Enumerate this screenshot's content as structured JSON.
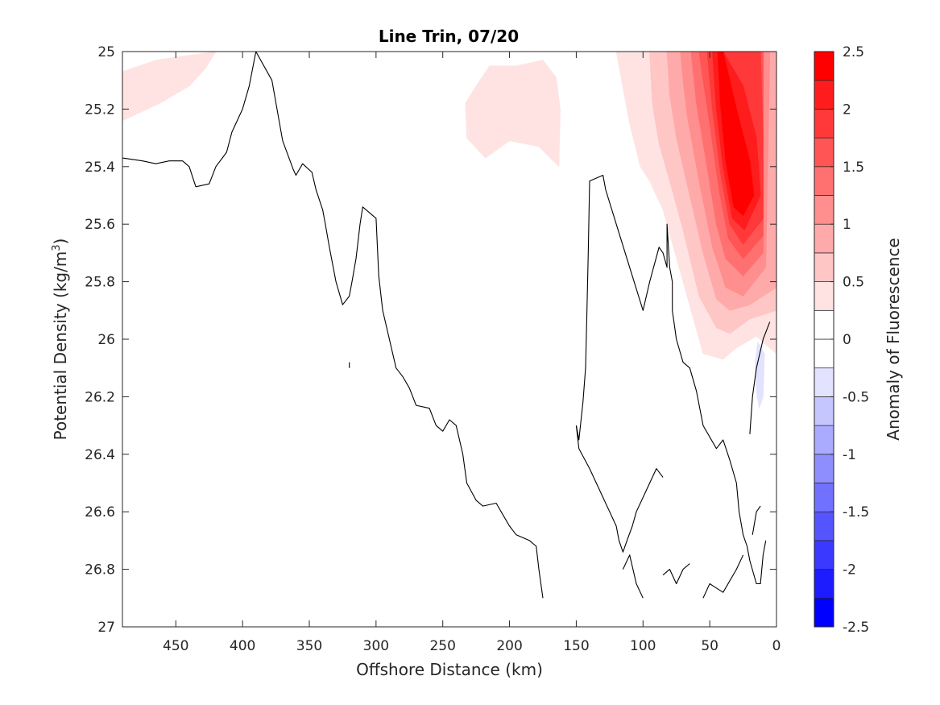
{
  "chart_data": {
    "type": "filled-contour",
    "title": "Line Trin, 07/20",
    "xlabel": "Offshore Distance (km)",
    "ylabel_main": "Potential Density (kg/m",
    "ylabel_sup": "3",
    "ylabel_end": ")",
    "xlim": [
      490,
      0
    ],
    "ylim": [
      25,
      27
    ],
    "x_reversed": true,
    "y_reversed": true,
    "xticks": [
      450,
      400,
      350,
      300,
      250,
      200,
      150,
      100,
      50,
      0
    ],
    "xtick_labels": [
      "450",
      "400",
      "350",
      "300",
      "250",
      "200",
      "150",
      "100",
      "50",
      "0"
    ],
    "yticks": [
      25,
      25.2,
      25.4,
      25.6,
      25.8,
      26,
      26.2,
      26.4,
      26.6,
      26.8,
      27
    ],
    "ytick_labels": [
      "25",
      "25.2",
      "25.4",
      "25.6",
      "25.8",
      "26",
      "26.2",
      "26.4",
      "26.6",
      "26.8",
      "27"
    ],
    "colorbar": {
      "label": "Anomaly of Fluorescence",
      "levels": [
        -2.5,
        -2.25,
        -2,
        -1.75,
        -1.5,
        -1.25,
        -1,
        -0.75,
        -0.5,
        -0.25,
        0,
        0.25,
        0.5,
        0.75,
        1,
        1.25,
        1.5,
        1.75,
        2,
        2.25,
        2.5
      ],
      "tick_values": [
        2.5,
        2,
        1.5,
        1,
        0.5,
        0,
        -0.5,
        -1,
        -1.5,
        -2,
        -2.5
      ],
      "tick_labels": [
        "2.5",
        "2",
        "1.5",
        "1",
        "0.5",
        "0",
        "-0.5",
        "-1",
        "-1.5",
        "-2",
        "-2.5"
      ],
      "colors": [
        "#0000ff",
        "#1c1cff",
        "#3939ff",
        "#5555ff",
        "#7171ff",
        "#8e8eff",
        "#aaaaff",
        "#c6c6ff",
        "#e3e3ff",
        "#ffffff",
        "#ffffff",
        "#ffe3e3",
        "#ffc6c6",
        "#ffaaaa",
        "#ff8e8e",
        "#ff7171",
        "#ff5555",
        "#ff3939",
        "#ff1c1c",
        "#ff0000"
      ]
    },
    "filled_regions": [
      {
        "level": 0.25,
        "color": "#ffe3e3",
        "points": [
          [
            490,
            25.07
          ],
          [
            465,
            25.03
          ],
          [
            420,
            25.0
          ],
          [
            428,
            25.06
          ],
          [
            440,
            25.12
          ],
          [
            462,
            25.18
          ],
          [
            490,
            25.24
          ]
        ]
      },
      {
        "level": 0.25,
        "color": "#ffe3e3",
        "points": [
          [
            225,
            25.12
          ],
          [
            215,
            25.05
          ],
          [
            195,
            25.05
          ],
          [
            175,
            25.03
          ],
          [
            165,
            25.09
          ],
          [
            162,
            25.2
          ],
          [
            163,
            25.4
          ],
          [
            178,
            25.33
          ],
          [
            200,
            25.31
          ],
          [
            218,
            25.37
          ],
          [
            232,
            25.3
          ],
          [
            233,
            25.18
          ]
        ]
      },
      {
        "level": 0.25,
        "color": "#ffe3e3",
        "points": [
          [
            120,
            25.0
          ],
          [
            0,
            25.0
          ],
          [
            0,
            26.05
          ],
          [
            15,
            25.99
          ],
          [
            30,
            26.03
          ],
          [
            40,
            26.07
          ],
          [
            55,
            26.05
          ],
          [
            70,
            25.8
          ],
          [
            85,
            25.55
          ],
          [
            95,
            25.45
          ],
          [
            102,
            25.4
          ],
          [
            110,
            25.25
          ]
        ]
      },
      {
        "level": 0.5,
        "color": "#ffc6c6",
        "points": [
          [
            95,
            25.0
          ],
          [
            0,
            25.0
          ],
          [
            0,
            25.9
          ],
          [
            20,
            25.93
          ],
          [
            35,
            25.98
          ],
          [
            45,
            25.96
          ],
          [
            58,
            25.85
          ],
          [
            70,
            25.62
          ],
          [
            80,
            25.45
          ],
          [
            88,
            25.32
          ],
          [
            93,
            25.18
          ]
        ]
      },
      {
        "level": 0.75,
        "color": "#ffaaaa",
        "points": [
          [
            82,
            25.0
          ],
          [
            0,
            25.0
          ],
          [
            0,
            25.82
          ],
          [
            20,
            25.88
          ],
          [
            35,
            25.9
          ],
          [
            45,
            25.86
          ],
          [
            55,
            25.7
          ],
          [
            65,
            25.5
          ],
          [
            75,
            25.3
          ],
          [
            80,
            25.15
          ]
        ]
      },
      {
        "level": 1.0,
        "color": "#ff8e8e",
        "points": [
          [
            72,
            25.0
          ],
          [
            5,
            25.0
          ],
          [
            8,
            25.75
          ],
          [
            25,
            25.85
          ],
          [
            38,
            25.82
          ],
          [
            48,
            25.68
          ],
          [
            58,
            25.45
          ],
          [
            67,
            25.22
          ],
          [
            70,
            25.1
          ]
        ]
      },
      {
        "level": 1.25,
        "color": "#ff7171",
        "points": [
          [
            64,
            25.0
          ],
          [
            10,
            25.0
          ],
          [
            10,
            25.7
          ],
          [
            25,
            25.78
          ],
          [
            38,
            25.72
          ],
          [
            45,
            25.6
          ],
          [
            52,
            25.4
          ],
          [
            60,
            25.18
          ]
        ]
      },
      {
        "level": 1.5,
        "color": "#ff5555",
        "points": [
          [
            58,
            25.0
          ],
          [
            10,
            25.0
          ],
          [
            10,
            25.64
          ],
          [
            25,
            25.72
          ],
          [
            36,
            25.65
          ],
          [
            43,
            25.48
          ],
          [
            50,
            25.25
          ],
          [
            55,
            25.1
          ]
        ]
      },
      {
        "level": 1.75,
        "color": "#ff3939",
        "points": [
          [
            52,
            25.0
          ],
          [
            12,
            25.0
          ],
          [
            10,
            25.3
          ],
          [
            10,
            25.58
          ],
          [
            25,
            25.67
          ],
          [
            35,
            25.6
          ],
          [
            42,
            25.42
          ],
          [
            48,
            25.2
          ]
        ]
      },
      {
        "level": 2.0,
        "color": "#ff1c1c",
        "points": [
          [
            48,
            25.0
          ],
          [
            40,
            25.0
          ],
          [
            25,
            25.12
          ],
          [
            15,
            25.3
          ],
          [
            12,
            25.5
          ],
          [
            24,
            25.62
          ],
          [
            33,
            25.58
          ],
          [
            40,
            25.4
          ],
          [
            45,
            25.2
          ]
        ]
      },
      {
        "level": 2.25,
        "color": "#ff0000",
        "points": [
          [
            44,
            25.0
          ],
          [
            40,
            25.0
          ],
          [
            30,
            25.2
          ],
          [
            20,
            25.38
          ],
          [
            17,
            25.5
          ],
          [
            25,
            25.57
          ],
          [
            32,
            25.54
          ],
          [
            38,
            25.38
          ],
          [
            42,
            25.18
          ]
        ]
      },
      {
        "level": -0.25,
        "color": "#e3e3ff",
        "points": [
          [
            14,
            26.01
          ],
          [
            9,
            26.05
          ],
          [
            10,
            26.2
          ],
          [
            13,
            26.24
          ],
          [
            15,
            26.18
          ],
          [
            16,
            26.08
          ]
        ]
      }
    ],
    "zero_contours": [
      [
        [
          490,
          25.37
        ],
        [
          475,
          25.38
        ],
        [
          465,
          25.39
        ],
        [
          455,
          25.38
        ],
        [
          445,
          25.38
        ],
        [
          440,
          25.4
        ],
        [
          435,
          25.47
        ],
        [
          425,
          25.46
        ],
        [
          420,
          25.4
        ],
        [
          412,
          25.35
        ],
        [
          408,
          25.28
        ],
        [
          400,
          25.2
        ],
        [
          395,
          25.12
        ],
        [
          390,
          25.0
        ],
        [
          378,
          25.1
        ],
        [
          370,
          25.31
        ],
        [
          362,
          25.41
        ],
        [
          360,
          25.43
        ],
        [
          355,
          25.39
        ],
        [
          348,
          25.42
        ],
        [
          345,
          25.48
        ],
        [
          340,
          25.55
        ],
        [
          338,
          25.6
        ],
        [
          335,
          25.68
        ],
        [
          330,
          25.8
        ],
        [
          325,
          25.88
        ],
        [
          320,
          25.85
        ],
        [
          318,
          25.8
        ],
        [
          315,
          25.72
        ],
        [
          312,
          25.6
        ],
        [
          310,
          25.54
        ],
        [
          305,
          25.56
        ],
        [
          300,
          25.58
        ],
        [
          298,
          25.78
        ],
        [
          295,
          25.9
        ],
        [
          290,
          26.0
        ],
        [
          285,
          26.1
        ],
        [
          280,
          26.13
        ],
        [
          275,
          26.17
        ],
        [
          270,
          26.23
        ],
        [
          260,
          26.24
        ],
        [
          255,
          26.3
        ],
        [
          250,
          26.32
        ],
        [
          245,
          26.28
        ],
        [
          240,
          26.3
        ],
        [
          235,
          26.4
        ],
        [
          232,
          26.5
        ],
        [
          225,
          26.56
        ],
        [
          220,
          26.58
        ],
        [
          210,
          26.57
        ],
        [
          205,
          26.61
        ],
        [
          200,
          26.65
        ],
        [
          195,
          26.68
        ],
        [
          185,
          26.7
        ],
        [
          180,
          26.72
        ],
        [
          178,
          26.8
        ],
        [
          175,
          26.9
        ]
      ],
      [
        [
          320,
          26.08
        ],
        [
          320,
          26.1
        ]
      ],
      [
        [
          150,
          26.3
        ],
        [
          148,
          26.35
        ],
        [
          145,
          26.22
        ],
        [
          143,
          26.1
        ],
        [
          142,
          25.9
        ],
        [
          141,
          25.7
        ],
        [
          140,
          25.45
        ],
        [
          130,
          25.43
        ],
        [
          128,
          25.48
        ],
        [
          120,
          25.6
        ],
        [
          110,
          25.75
        ],
        [
          100,
          25.9
        ],
        [
          95,
          25.8
        ],
        [
          88,
          25.68
        ],
        [
          85,
          25.7
        ],
        [
          82,
          25.75
        ],
        [
          82,
          25.6
        ],
        [
          80,
          25.75
        ],
        [
          78,
          25.8
        ],
        [
          78,
          25.9
        ],
        [
          75,
          26.0
        ],
        [
          70,
          26.08
        ],
        [
          65,
          26.1
        ],
        [
          60,
          26.18
        ],
        [
          55,
          26.3
        ],
        [
          45,
          26.38
        ],
        [
          40,
          26.35
        ],
        [
          35,
          26.42
        ],
        [
          30,
          26.5
        ],
        [
          28,
          26.6
        ],
        [
          25,
          26.68
        ],
        [
          22,
          26.72
        ],
        [
          20,
          26.77
        ],
        [
          15,
          26.85
        ],
        [
          12,
          26.85
        ],
        [
          10,
          26.75
        ],
        [
          8,
          26.7
        ]
      ],
      [
        [
          150,
          26.3
        ],
        [
          148,
          26.38
        ],
        [
          140,
          26.45
        ],
        [
          135,
          26.5
        ],
        [
          130,
          26.55
        ],
        [
          125,
          26.6
        ],
        [
          120,
          26.65
        ],
        [
          118,
          26.7
        ],
        [
          115,
          26.74
        ],
        [
          112,
          26.7
        ],
        [
          108,
          26.65
        ],
        [
          105,
          26.6
        ],
        [
          100,
          26.55
        ],
        [
          95,
          26.5
        ],
        [
          90,
          26.45
        ],
        [
          85,
          26.48
        ]
      ],
      [
        [
          115,
          26.8
        ],
        [
          110,
          26.75
        ],
        [
          105,
          26.85
        ],
        [
          100,
          26.9
        ]
      ],
      [
        [
          85,
          26.82
        ],
        [
          80,
          26.8
        ],
        [
          75,
          26.85
        ],
        [
          70,
          26.8
        ],
        [
          65,
          26.78
        ]
      ],
      [
        [
          55,
          26.9
        ],
        [
          50,
          26.85
        ],
        [
          40,
          26.88
        ],
        [
          30,
          26.8
        ],
        [
          25,
          26.75
        ]
      ],
      [
        [
          20,
          26.33
        ],
        [
          18,
          26.2
        ],
        [
          15,
          26.1
        ],
        [
          10,
          26.0
        ],
        [
          5,
          25.94
        ]
      ],
      [
        [
          18,
          26.68
        ],
        [
          15,
          26.6
        ],
        [
          12,
          26.58
        ]
      ]
    ]
  }
}
